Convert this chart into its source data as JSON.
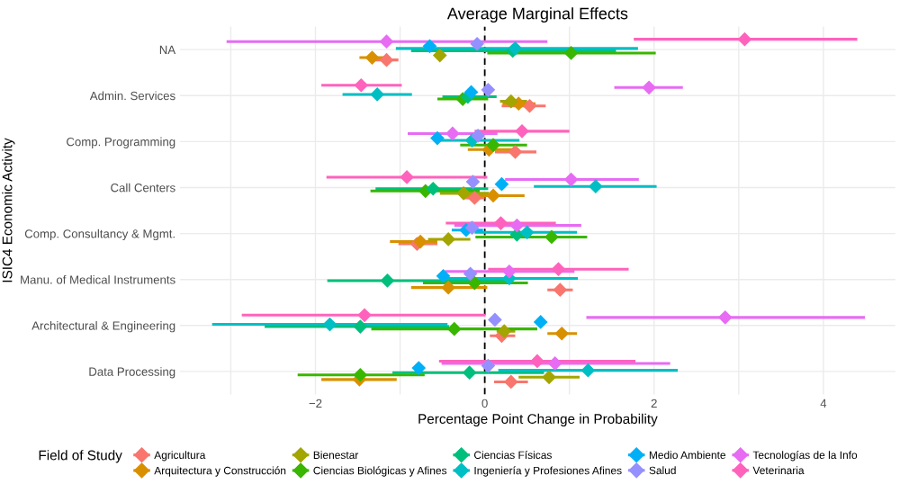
{
  "chart_data": {
    "type": "scatter",
    "orientation": "horizontal",
    "title": "Average Marginal Effects",
    "xlabel": "Percentage Point Change in Probability",
    "ylabel": "ISIC4 Economic Activity",
    "legend_title": "Field of Study",
    "legend": "bottom",
    "grid": true,
    "marker": "diamond",
    "categories": [
      "NA",
      "Admin. Services",
      "Comp. Programming",
      "Call Centers",
      "Comp. Consultancy & Mgmt.",
      "Manu. of Medical Instruments",
      "Architectural & Engineering",
      "Data Processing"
    ],
    "xlim": [
      -3.6,
      4.85
    ],
    "xticks": [
      {
        "value": -3,
        "label": null
      },
      -2,
      {
        "value": -1,
        "label": null
      },
      0,
      {
        "value": 1,
        "label": null
      },
      2,
      {
        "value": 3,
        "label": null
      },
      4
    ],
    "ref_lines": [
      {
        "axis": "x",
        "value": 0,
        "color": "#000000",
        "line_style": "dashed"
      }
    ],
    "series": [
      {
        "name": "Agricultura",
        "color": "#f8766d",
        "values": [
          -1.16,
          0.53,
          0.36,
          -0.12,
          -0.8,
          0.89,
          0.2,
          0.31
        ],
        "errors": [
          [
            -1.3,
            -1.02
          ],
          [
            0.2,
            0.72
          ],
          [
            0.12,
            0.61
          ],
          [
            -0.24,
            0.0
          ],
          [
            -1.02,
            -0.56
          ],
          [
            0.74,
            1.04
          ],
          [
            0.06,
            0.36
          ],
          [
            0.11,
            0.51
          ]
        ]
      },
      {
        "name": "Arquitectura y Construcción",
        "color": "#d89000",
        "values": [
          -1.33,
          0.4,
          0.05,
          0.1,
          -0.76,
          -0.43,
          0.91,
          -1.48
        ],
        "errors": [
          [
            -1.48,
            -1.17
          ],
          [
            0.21,
            0.6
          ],
          [
            -0.2,
            0.33
          ],
          [
            -0.28,
            0.47
          ],
          [
            -1.12,
            -0.56
          ],
          [
            -0.87,
            0.03
          ],
          [
            0.74,
            1.09
          ],
          [
            -1.93,
            -1.04
          ]
        ]
      },
      {
        "name": "Bienestar",
        "color": "#a3a500",
        "values": [
          -0.53,
          0.31,
          null,
          -0.25,
          -0.43,
          null,
          0.23,
          0.76
        ],
        "errors": [
          null,
          [
            0.18,
            0.5
          ],
          null,
          [
            -0.53,
            0.05
          ],
          [
            -0.67,
            -0.17
          ],
          null,
          [
            0.14,
            0.36
          ],
          [
            0.4,
            1.12
          ]
        ]
      },
      {
        "name": "Ciencias Biológicas y Afines",
        "color": "#39b600",
        "values": [
          1.02,
          -0.26,
          0.1,
          -0.7,
          0.79,
          -0.12,
          -0.36,
          -1.47
        ],
        "errors": [
          [
            0.03,
            2.02
          ],
          [
            -0.56,
            0.04
          ],
          [
            -0.29,
            0.5
          ],
          [
            -1.35,
            -0.06
          ],
          [
            -0.11,
            1.21
          ],
          [
            -0.73,
            0.51
          ],
          [
            -1.34,
            0.62
          ],
          [
            -2.21,
            -0.71
          ]
        ]
      },
      {
        "name": "Ciencias Físicas",
        "color": "#00bf7d",
        "values": [
          0.33,
          -0.2,
          null,
          -0.61,
          0.38,
          -1.15,
          -1.47,
          -0.18
        ],
        "errors": [
          [
            -0.87,
            1.55
          ],
          [
            -0.5,
            0.14
          ],
          null,
          [
            -1.29,
            0.04
          ],
          null,
          [
            -1.86,
            0.28
          ],
          [
            -2.6,
            -0.42
          ],
          [
            -1.09,
            0.7
          ]
        ]
      },
      {
        "name": "Ingeniería y Profesiones Afines",
        "color": "#00bfc4",
        "values": [
          0.36,
          -1.27,
          -0.15,
          1.31,
          0.5,
          0.29,
          -1.83,
          1.22
        ],
        "errors": [
          [
            -1.05,
            1.81
          ],
          [
            -1.68,
            -0.86
          ],
          [
            -0.56,
            0.41
          ],
          [
            0.58,
            2.03
          ],
          [
            -0.12,
            1.09
          ],
          [
            -0.45,
            1.1
          ],
          [
            -3.22,
            -0.44
          ],
          [
            0.16,
            2.28
          ]
        ]
      },
      {
        "name": "Medio Ambiente",
        "color": "#00b0f6",
        "values": [
          -0.65,
          -0.16,
          -0.56,
          0.2,
          -0.22,
          -0.49,
          0.66,
          -0.78
        ],
        "errors": [
          null,
          null,
          null,
          null,
          [
            -0.39,
            -0.02
          ],
          null,
          null,
          null
        ]
      },
      {
        "name": "Salud",
        "color": "#9590ff",
        "values": [
          -0.09,
          0.04,
          -0.08,
          -0.14,
          -0.15,
          -0.17,
          0.12,
          0.04
        ]
      },
      {
        "name": "Tecnologías de la Info",
        "color": "#e76bf3",
        "values": [
          -1.16,
          1.94,
          -0.38,
          1.02,
          0.38,
          0.29,
          2.84,
          0.83
        ],
        "errors": [
          [
            -3.05,
            0.74
          ],
          [
            1.53,
            2.34
          ],
          [
            -0.91,
            0.15
          ],
          [
            0.24,
            1.82
          ],
          [
            -0.36,
            1.14
          ],
          [
            -0.47,
            1.06
          ],
          [
            1.2,
            4.49
          ],
          [
            -0.51,
            2.19
          ]
        ]
      },
      {
        "name": "Veterinaria",
        "color": "#ff62bc",
        "values": [
          3.07,
          -1.46,
          0.44,
          -0.92,
          0.19,
          0.87,
          -1.42,
          0.62
        ],
        "errors": [
          [
            1.76,
            4.4
          ],
          [
            -1.93,
            -0.98
          ],
          [
            -0.12,
            1.0
          ],
          [
            -1.87,
            0.03
          ],
          [
            -0.46,
            0.84
          ],
          [
            0.04,
            1.7
          ],
          [
            -2.87,
            0.01
          ],
          [
            -0.54,
            1.78
          ]
        ]
      }
    ]
  }
}
